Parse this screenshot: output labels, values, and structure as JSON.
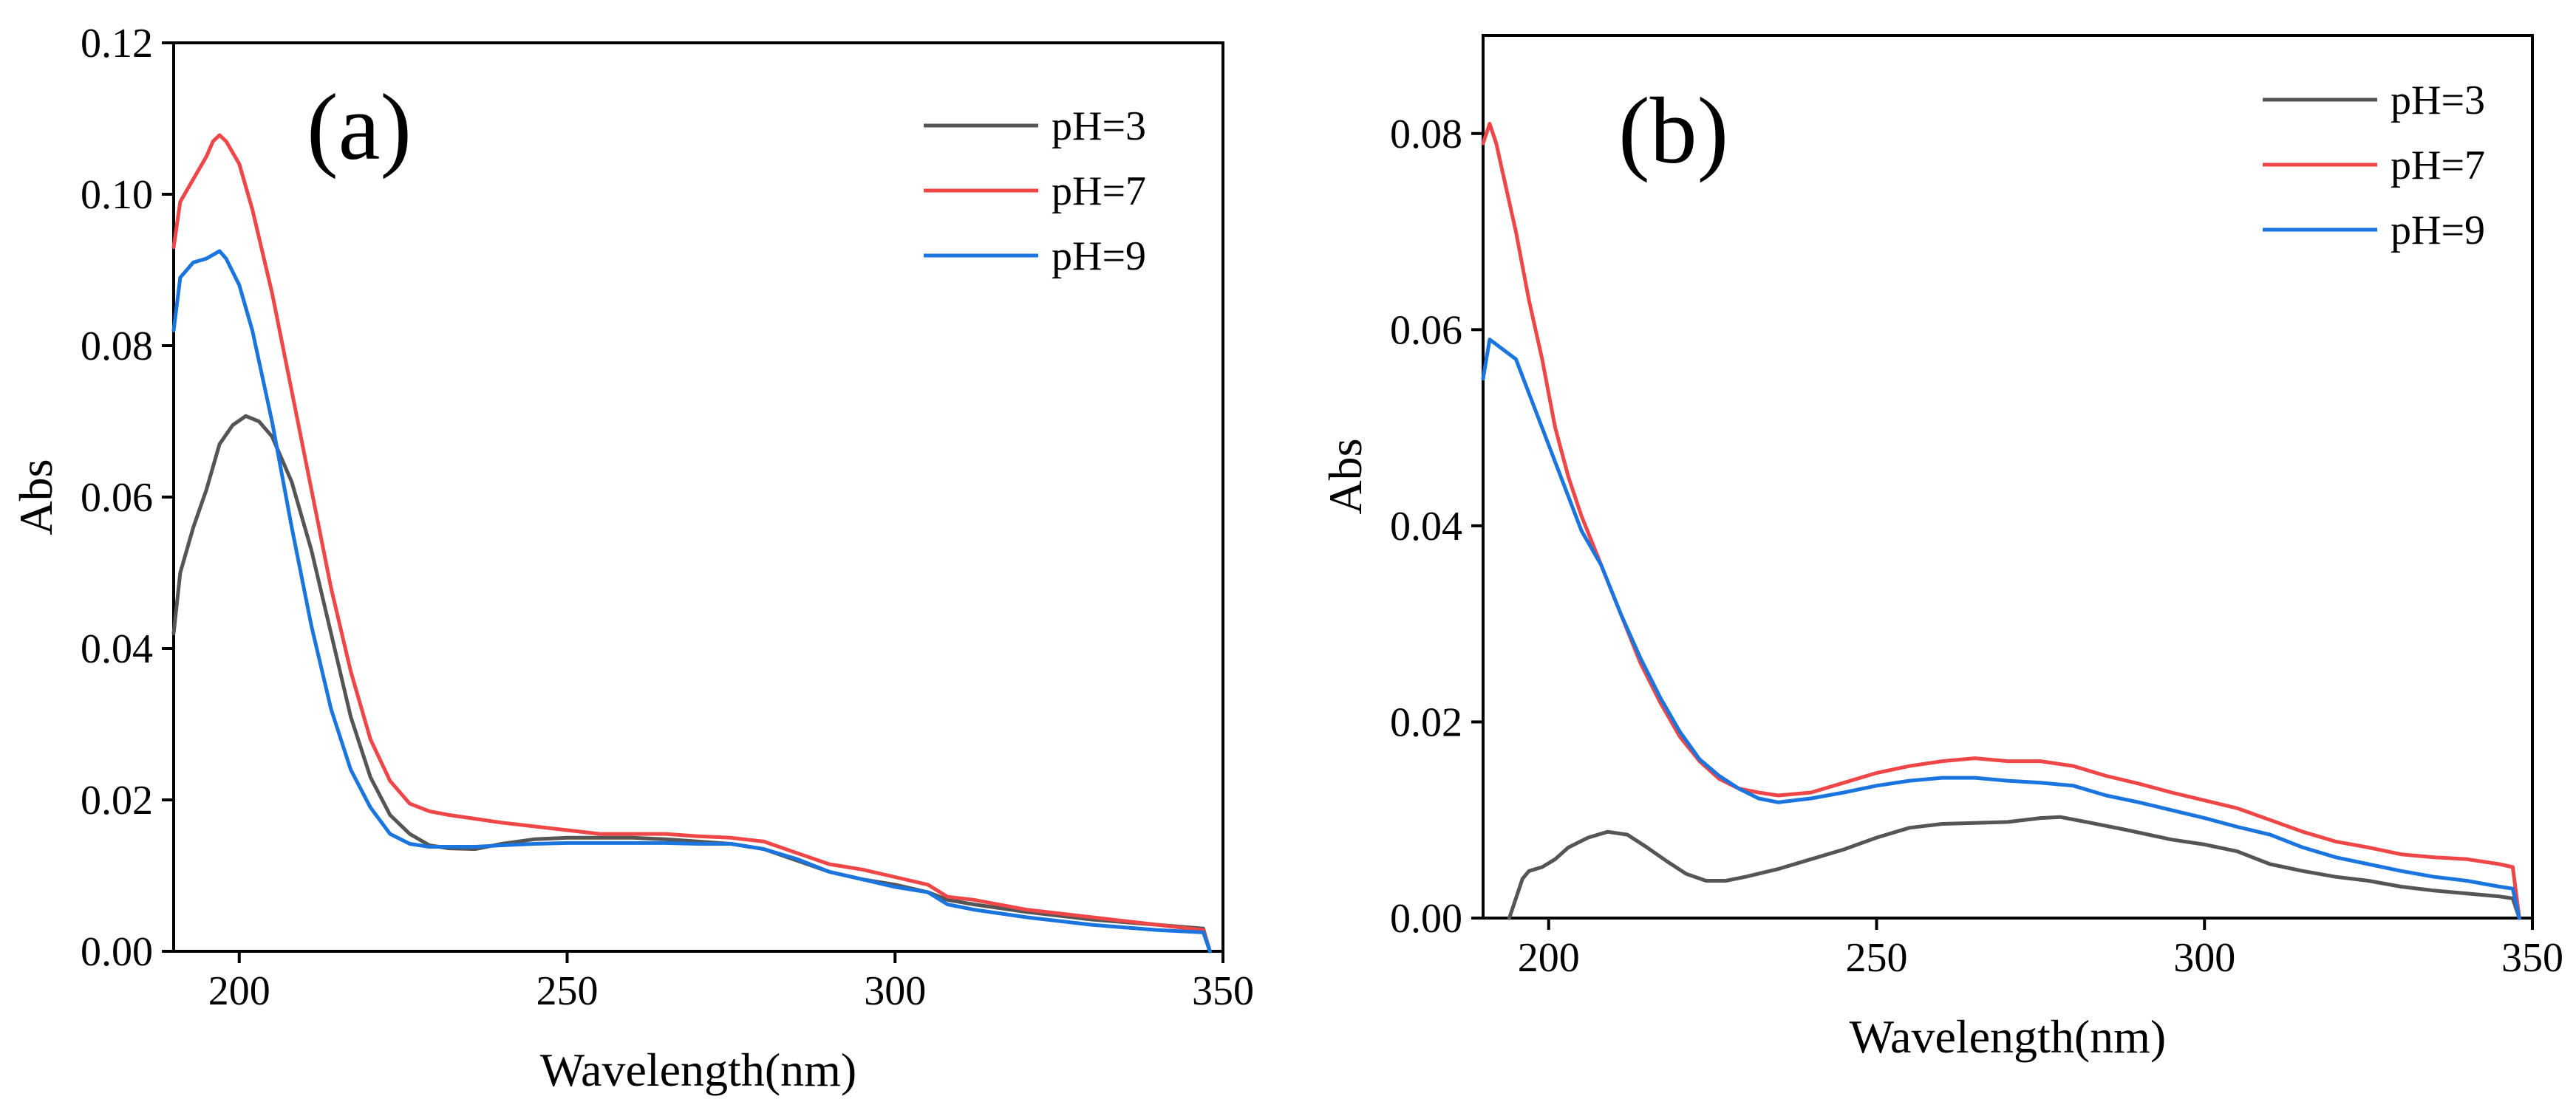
{
  "chart_data": [
    {
      "type": "line",
      "panel_label": "(a)",
      "xlabel": "Wavelength(nm)",
      "ylabel": "Abs",
      "xlim": [
        190,
        350
      ],
      "ylim": [
        0,
        0.12
      ],
      "x_ticks": [
        200,
        250,
        300,
        350
      ],
      "x_tick_labels": [
        "200",
        "250",
        "300",
        "350"
      ],
      "y_ticks": [
        0,
        0.02,
        0.04,
        0.06,
        0.08,
        0.1,
        0.12
      ],
      "y_tick_labels": [
        "0.00",
        "0.02",
        "0.04",
        "0.06",
        "0.08",
        "0.10",
        "0.12"
      ],
      "grid": false,
      "legend_position": "top-right",
      "series": [
        {
          "name": "pH=3",
          "color": "#555555",
          "x": [
            190,
            191,
            193,
            195,
            197,
            199,
            201,
            203,
            205,
            208,
            211,
            214,
            217,
            220,
            223,
            226,
            229,
            232,
            236,
            240,
            245,
            250,
            255,
            260,
            265,
            270,
            275,
            280,
            285,
            290,
            295,
            300,
            305,
            308,
            312,
            320,
            330,
            340,
            347,
            348
          ],
          "y": [
            0.042,
            0.05,
            0.056,
            0.061,
            0.067,
            0.0695,
            0.0707,
            0.07,
            0.068,
            0.062,
            0.053,
            0.042,
            0.031,
            0.023,
            0.018,
            0.0155,
            0.014,
            0.0136,
            0.0135,
            0.0142,
            0.0148,
            0.015,
            0.015,
            0.015,
            0.0148,
            0.0145,
            0.0142,
            0.0135,
            0.012,
            0.0105,
            0.0095,
            0.0088,
            0.0078,
            0.0068,
            0.0062,
            0.0052,
            0.0042,
            0.0035,
            0.003,
            0.0
          ]
        },
        {
          "name": "pH=7",
          "color": "#EF4747",
          "x": [
            190,
            191,
            193,
            195,
            196,
            197,
            198,
            200,
            202,
            205,
            208,
            211,
            214,
            217,
            220,
            223,
            226,
            229,
            232,
            236,
            240,
            245,
            250,
            255,
            260,
            265,
            270,
            275,
            280,
            285,
            290,
            295,
            300,
            305,
            308,
            312,
            320,
            330,
            340,
            347,
            348
          ],
          "y": [
            0.093,
            0.099,
            0.102,
            0.105,
            0.107,
            0.1078,
            0.107,
            0.104,
            0.098,
            0.087,
            0.074,
            0.061,
            0.048,
            0.037,
            0.028,
            0.0225,
            0.0195,
            0.0185,
            0.018,
            0.0175,
            0.017,
            0.0165,
            0.016,
            0.0155,
            0.0155,
            0.0155,
            0.0152,
            0.015,
            0.0145,
            0.013,
            0.0115,
            0.0108,
            0.0098,
            0.0088,
            0.0072,
            0.0068,
            0.0055,
            0.0045,
            0.0035,
            0.0028,
            0.0
          ]
        },
        {
          "name": "pH=9",
          "color": "#1A75DE",
          "x": [
            190,
            191,
            193,
            195,
            197,
            198,
            200,
            202,
            205,
            208,
            211,
            214,
            217,
            220,
            223,
            226,
            229,
            232,
            236,
            240,
            245,
            250,
            255,
            260,
            265,
            270,
            275,
            280,
            285,
            290,
            295,
            300,
            305,
            308,
            312,
            320,
            330,
            340,
            347,
            348
          ],
          "y": [
            0.082,
            0.089,
            0.091,
            0.0915,
            0.0925,
            0.0915,
            0.088,
            0.082,
            0.07,
            0.056,
            0.043,
            0.032,
            0.024,
            0.019,
            0.0155,
            0.0142,
            0.0138,
            0.0138,
            0.0138,
            0.014,
            0.0142,
            0.0143,
            0.0143,
            0.0143,
            0.0143,
            0.0142,
            0.0142,
            0.0135,
            0.0122,
            0.0105,
            0.0095,
            0.0085,
            0.0078,
            0.0062,
            0.0055,
            0.0045,
            0.0035,
            0.0028,
            0.0025,
            0.0
          ]
        }
      ]
    },
    {
      "type": "line",
      "panel_label": "(b)",
      "xlabel": "Wavelength(nm)",
      "ylabel": "Abs",
      "xlim": [
        190,
        350
      ],
      "ylim": [
        0,
        0.09
      ],
      "x_ticks": [
        200,
        250,
        300,
        350
      ],
      "x_tick_labels": [
        "200",
        "250",
        "300",
        "350"
      ],
      "y_ticks": [
        0,
        0.02,
        0.04,
        0.06,
        0.08
      ],
      "y_tick_labels": [
        "0.00",
        "0.02",
        "0.04",
        "0.06",
        "0.08"
      ],
      "grid": false,
      "legend_position": "top-right",
      "series": [
        {
          "name": "pH=3",
          "color": "#555555",
          "x": [
            194,
            195,
            196,
            197,
            199,
            201,
            203,
            206,
            209,
            212,
            215,
            218,
            221,
            224,
            227,
            230,
            235,
            240,
            245,
            250,
            255,
            260,
            265,
            270,
            275,
            278,
            282,
            288,
            295,
            300,
            305,
            310,
            315,
            320,
            325,
            330,
            335,
            340,
            345,
            347,
            348
          ],
          "y": [
            0.0,
            0.002,
            0.004,
            0.0048,
            0.0052,
            0.006,
            0.0072,
            0.0082,
            0.0088,
            0.0085,
            0.0072,
            0.0058,
            0.0045,
            0.0038,
            0.0038,
            0.0042,
            0.005,
            0.006,
            0.007,
            0.0082,
            0.0092,
            0.0096,
            0.0097,
            0.0098,
            0.0102,
            0.0103,
            0.0098,
            0.009,
            0.008,
            0.0075,
            0.0068,
            0.0055,
            0.0048,
            0.0042,
            0.0038,
            0.0032,
            0.0028,
            0.0025,
            0.0022,
            0.002,
            0.0
          ]
        },
        {
          "name": "pH=7",
          "color": "#EF4747",
          "x": [
            190,
            191,
            192,
            193,
            195,
            197,
            199,
            201,
            203,
            205,
            208,
            211,
            214,
            217,
            220,
            223,
            226,
            229,
            232,
            235,
            240,
            245,
            250,
            255,
            260,
            265,
            270,
            275,
            280,
            285,
            290,
            295,
            300,
            305,
            310,
            315,
            320,
            325,
            330,
            335,
            340,
            345,
            347,
            348
          ],
          "y": [
            0.079,
            0.081,
            0.079,
            0.076,
            0.07,
            0.063,
            0.057,
            0.05,
            0.045,
            0.041,
            0.036,
            0.031,
            0.026,
            0.022,
            0.0185,
            0.016,
            0.0142,
            0.0132,
            0.0128,
            0.0125,
            0.0128,
            0.0138,
            0.0148,
            0.0155,
            0.016,
            0.0163,
            0.016,
            0.016,
            0.0155,
            0.0145,
            0.0137,
            0.0128,
            0.012,
            0.0112,
            0.01,
            0.0088,
            0.0078,
            0.0072,
            0.0065,
            0.0062,
            0.006,
            0.0055,
            0.0052,
            0.0
          ]
        },
        {
          "name": "pH=9",
          "color": "#1A75DE",
          "x": [
            190,
            191,
            192,
            193,
            195,
            197,
            199,
            201,
            203,
            205,
            208,
            211,
            214,
            217,
            220,
            223,
            226,
            229,
            232,
            235,
            240,
            245,
            250,
            255,
            260,
            265,
            270,
            275,
            280,
            285,
            290,
            295,
            300,
            305,
            310,
            315,
            320,
            325,
            330,
            335,
            340,
            345,
            347,
            348
          ],
          "y": [
            0.055,
            0.059,
            0.0585,
            0.058,
            0.057,
            0.0535,
            0.05,
            0.0465,
            0.043,
            0.0395,
            0.036,
            0.031,
            0.0265,
            0.0225,
            0.019,
            0.0162,
            0.0145,
            0.0132,
            0.0122,
            0.0118,
            0.0122,
            0.0128,
            0.0135,
            0.014,
            0.0143,
            0.0143,
            0.014,
            0.0138,
            0.0135,
            0.0125,
            0.0118,
            0.011,
            0.0102,
            0.0093,
            0.0085,
            0.0072,
            0.0062,
            0.0055,
            0.0048,
            0.0042,
            0.0038,
            0.0032,
            0.003,
            0.0
          ]
        }
      ]
    }
  ]
}
